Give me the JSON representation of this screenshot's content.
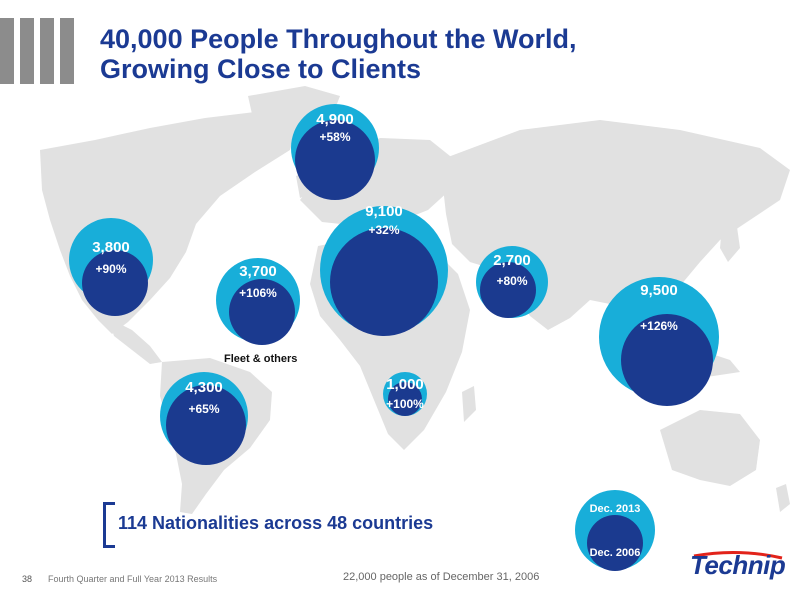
{
  "title": {
    "line1": "40,000 People Throughout the World,",
    "line2": "Growing Close to Clients"
  },
  "colors": {
    "brand_blue": "#1b3a93",
    "outer_circle": "#18aed9",
    "inner_circle": "#1b3a8f",
    "land": "#e1e1e1"
  },
  "regions": [
    {
      "id": "north-america",
      "value": "3,800",
      "growth": "+90%"
    },
    {
      "id": "fleet",
      "value": "3,700",
      "growth": "+106%",
      "label": "Fleet & others"
    },
    {
      "id": "south-america",
      "value": "4,300",
      "growth": "+65%"
    },
    {
      "id": "northern-europe",
      "value": "4,900",
      "growth": "+58%"
    },
    {
      "id": "europe",
      "value": "9,100",
      "growth": "+32%"
    },
    {
      "id": "africa",
      "value": "1,000",
      "growth": "+100%"
    },
    {
      "id": "middle-east",
      "value": "2,700",
      "growth": "+80%"
    },
    {
      "id": "asia-pacific",
      "value": "9,500",
      "growth": "+126%"
    }
  ],
  "nationalities": "114 Nationalities across 48 countries",
  "legend": {
    "outer": "Dec. 2013",
    "inner": "Dec. 2006"
  },
  "footnote": "22,000 people as of December 31, 2006",
  "footer": {
    "page": "38",
    "text": "Fourth Quarter and Full Year 2013 Results"
  },
  "logo": "Technip"
}
